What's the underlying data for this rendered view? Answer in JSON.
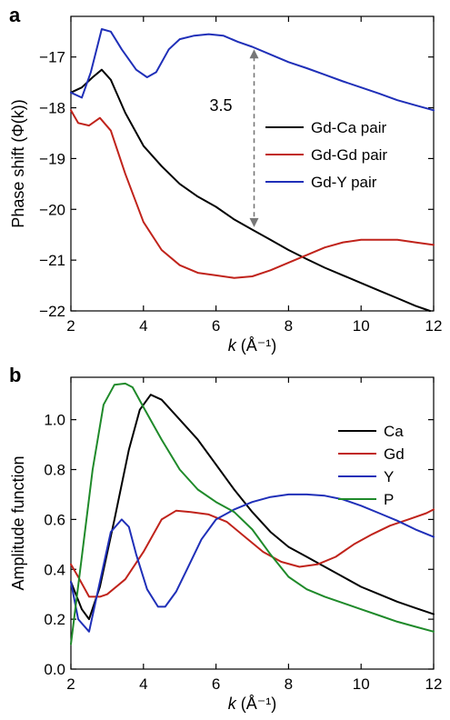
{
  "chart_data": [
    {
      "panel": "a",
      "type": "line",
      "xlabel_italic": "k",
      "xlabel_rest": " (Å⁻¹)",
      "ylabel": "Phase shift (Φ(k))",
      "xlim": [
        2,
        12
      ],
      "ylim": [
        -22,
        -16.2
      ],
      "xticks": [
        2,
        4,
        6,
        8,
        10,
        12
      ],
      "yticks": [
        -17,
        -18,
        -19,
        -20,
        -21,
        -22
      ],
      "legend_position": "right",
      "grid": false,
      "annotation": {
        "text": "3.5",
        "x": 7.05,
        "y_top": -16.85,
        "y_bottom": -20.35
      },
      "series": [
        {
          "name": "Gd-Ca pair",
          "color": "#000000",
          "x": [
            2,
            2.3,
            2.6,
            2.85,
            3.1,
            3.5,
            4,
            4.5,
            5,
            5.5,
            6,
            6.5,
            7,
            7.5,
            8,
            8.5,
            9,
            9.5,
            10,
            10.5,
            11,
            11.5,
            11.9
          ],
          "y": [
            -17.7,
            -17.6,
            -17.4,
            -17.25,
            -17.45,
            -18.1,
            -18.75,
            -19.15,
            -19.5,
            -19.75,
            -19.95,
            -20.2,
            -20.4,
            -20.6,
            -20.8,
            -20.98,
            -21.15,
            -21.3,
            -21.45,
            -21.6,
            -21.75,
            -21.9,
            -22.0
          ]
        },
        {
          "name": "Gd-Gd pair",
          "color": "#c0231b",
          "x": [
            2,
            2.2,
            2.5,
            2.8,
            3.1,
            3.5,
            4,
            4.5,
            5,
            5.5,
            6,
            6.5,
            7,
            7.5,
            8,
            8.5,
            9,
            9.5,
            10,
            10.5,
            11,
            11.5,
            12
          ],
          "y": [
            -18.05,
            -18.3,
            -18.35,
            -18.2,
            -18.45,
            -19.3,
            -20.25,
            -20.8,
            -21.1,
            -21.25,
            -21.3,
            -21.35,
            -21.32,
            -21.2,
            -21.05,
            -20.9,
            -20.75,
            -20.65,
            -20.6,
            -20.6,
            -20.6,
            -20.65,
            -20.7
          ]
        },
        {
          "name": "Gd-Y pair",
          "color": "#1f2fb8",
          "x": [
            2,
            2.3,
            2.55,
            2.85,
            3.1,
            3.4,
            3.8,
            4.1,
            4.35,
            4.7,
            5,
            5.4,
            5.8,
            6.2,
            6.6,
            7,
            7.5,
            8,
            8.5,
            9,
            9.5,
            10,
            10.5,
            11,
            11.5,
            12
          ],
          "y": [
            -17.7,
            -17.8,
            -17.3,
            -16.45,
            -16.5,
            -16.85,
            -17.25,
            -17.4,
            -17.3,
            -16.85,
            -16.65,
            -16.58,
            -16.55,
            -16.58,
            -16.7,
            -16.8,
            -16.95,
            -17.1,
            -17.22,
            -17.35,
            -17.48,
            -17.6,
            -17.72,
            -17.85,
            -17.95,
            -18.05
          ]
        }
      ]
    },
    {
      "panel": "b",
      "type": "line",
      "xlabel_italic": "k",
      "xlabel_rest": " (Å⁻¹)",
      "ylabel": "Amplitude function",
      "xlim": [
        2,
        12
      ],
      "ylim": [
        0,
        1.17
      ],
      "xticks": [
        2,
        4,
        6,
        8,
        10,
        12
      ],
      "yticks": [
        0.0,
        0.2,
        0.4,
        0.6,
        0.8,
        1.0
      ],
      "ytick_labels": [
        "0.0",
        "0.2",
        "0.4",
        "0.6",
        "0.8",
        "1.0"
      ],
      "legend_position": "top-right",
      "grid": false,
      "series": [
        {
          "name": "Ca",
          "color": "#000000",
          "x": [
            2,
            2.3,
            2.5,
            2.8,
            3.2,
            3.6,
            3.9,
            4.2,
            4.5,
            5,
            5.5,
            6,
            6.5,
            7,
            7.5,
            8,
            8.5,
            9,
            9.5,
            10,
            10.5,
            11,
            11.5,
            12
          ],
          "y": [
            0.35,
            0.24,
            0.2,
            0.33,
            0.6,
            0.88,
            1.04,
            1.1,
            1.08,
            1.0,
            0.92,
            0.82,
            0.72,
            0.63,
            0.55,
            0.49,
            0.45,
            0.41,
            0.37,
            0.33,
            0.3,
            0.27,
            0.245,
            0.22
          ]
        },
        {
          "name": "Gd",
          "color": "#c0231b",
          "x": [
            2,
            2.2,
            2.5,
            2.8,
            3.0,
            3.5,
            4,
            4.5,
            4.9,
            5.3,
            5.8,
            6.3,
            6.8,
            7.3,
            7.8,
            8.3,
            8.8,
            9.3,
            9.8,
            10.3,
            10.8,
            11.3,
            11.8,
            12
          ],
          "y": [
            0.42,
            0.37,
            0.29,
            0.29,
            0.3,
            0.36,
            0.47,
            0.6,
            0.635,
            0.63,
            0.62,
            0.59,
            0.53,
            0.47,
            0.43,
            0.41,
            0.42,
            0.45,
            0.5,
            0.54,
            0.575,
            0.6,
            0.625,
            0.64
          ]
        },
        {
          "name": "Y",
          "color": "#1f2fb8",
          "x": [
            2,
            2.2,
            2.5,
            2.8,
            3.1,
            3.4,
            3.6,
            3.8,
            4.1,
            4.4,
            4.6,
            4.9,
            5.2,
            5.6,
            6,
            6.5,
            7,
            7.5,
            8,
            8.5,
            9,
            9.5,
            10,
            10.5,
            11,
            11.5,
            12
          ],
          "y": [
            0.35,
            0.2,
            0.15,
            0.35,
            0.55,
            0.6,
            0.57,
            0.46,
            0.32,
            0.25,
            0.25,
            0.31,
            0.4,
            0.52,
            0.6,
            0.64,
            0.67,
            0.69,
            0.7,
            0.7,
            0.695,
            0.68,
            0.655,
            0.625,
            0.595,
            0.56,
            0.53
          ]
        },
        {
          "name": "P",
          "color": "#1f8a2a",
          "x": [
            2,
            2.3,
            2.6,
            2.9,
            3.2,
            3.5,
            3.7,
            4,
            4.5,
            5,
            5.5,
            6,
            6.5,
            7,
            7.5,
            8,
            8.5,
            9,
            9.5,
            10,
            10.5,
            11,
            11.5,
            12
          ],
          "y": [
            0.1,
            0.45,
            0.8,
            1.06,
            1.14,
            1.145,
            1.13,
            1.05,
            0.92,
            0.8,
            0.72,
            0.67,
            0.63,
            0.56,
            0.46,
            0.37,
            0.32,
            0.29,
            0.265,
            0.24,
            0.215,
            0.19,
            0.17,
            0.15
          ]
        }
      ]
    }
  ]
}
